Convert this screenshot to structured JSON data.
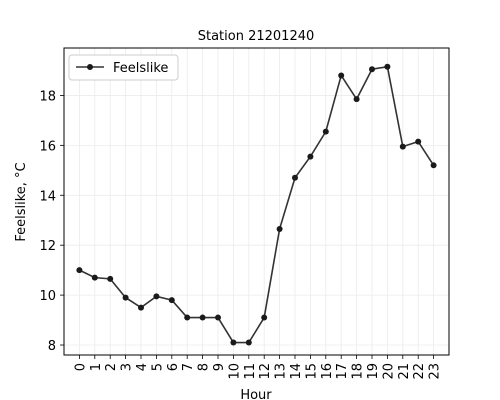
{
  "chart_data": {
    "type": "line",
    "title": "Station 21201240",
    "xlabel": "Hour",
    "ylabel": "Feelslike, °C",
    "x": [
      0,
      1,
      2,
      3,
      4,
      5,
      6,
      7,
      8,
      9,
      10,
      11,
      12,
      13,
      14,
      15,
      16,
      17,
      18,
      19,
      20,
      21,
      22,
      23
    ],
    "series": [
      {
        "name": "Feelslike",
        "values": [
          11.0,
          10.7,
          10.65,
          9.9,
          9.5,
          9.95,
          9.8,
          9.1,
          9.1,
          9.1,
          8.1,
          8.1,
          9.1,
          12.65,
          14.7,
          15.55,
          16.55,
          18.8,
          17.85,
          19.05,
          19.15,
          15.95,
          16.15,
          15.2
        ],
        "color": "#333333"
      }
    ],
    "xlim": [
      -1,
      24
    ],
    "ylim": [
      7.6,
      19.9
    ],
    "yticks": [
      8,
      10,
      12,
      14,
      16,
      18
    ],
    "xticks": [
      0,
      1,
      2,
      3,
      4,
      5,
      6,
      7,
      8,
      9,
      10,
      11,
      12,
      13,
      14,
      15,
      16,
      17,
      18,
      19,
      20,
      21,
      22,
      23
    ],
    "grid": true,
    "legend_position": "top-left"
  }
}
